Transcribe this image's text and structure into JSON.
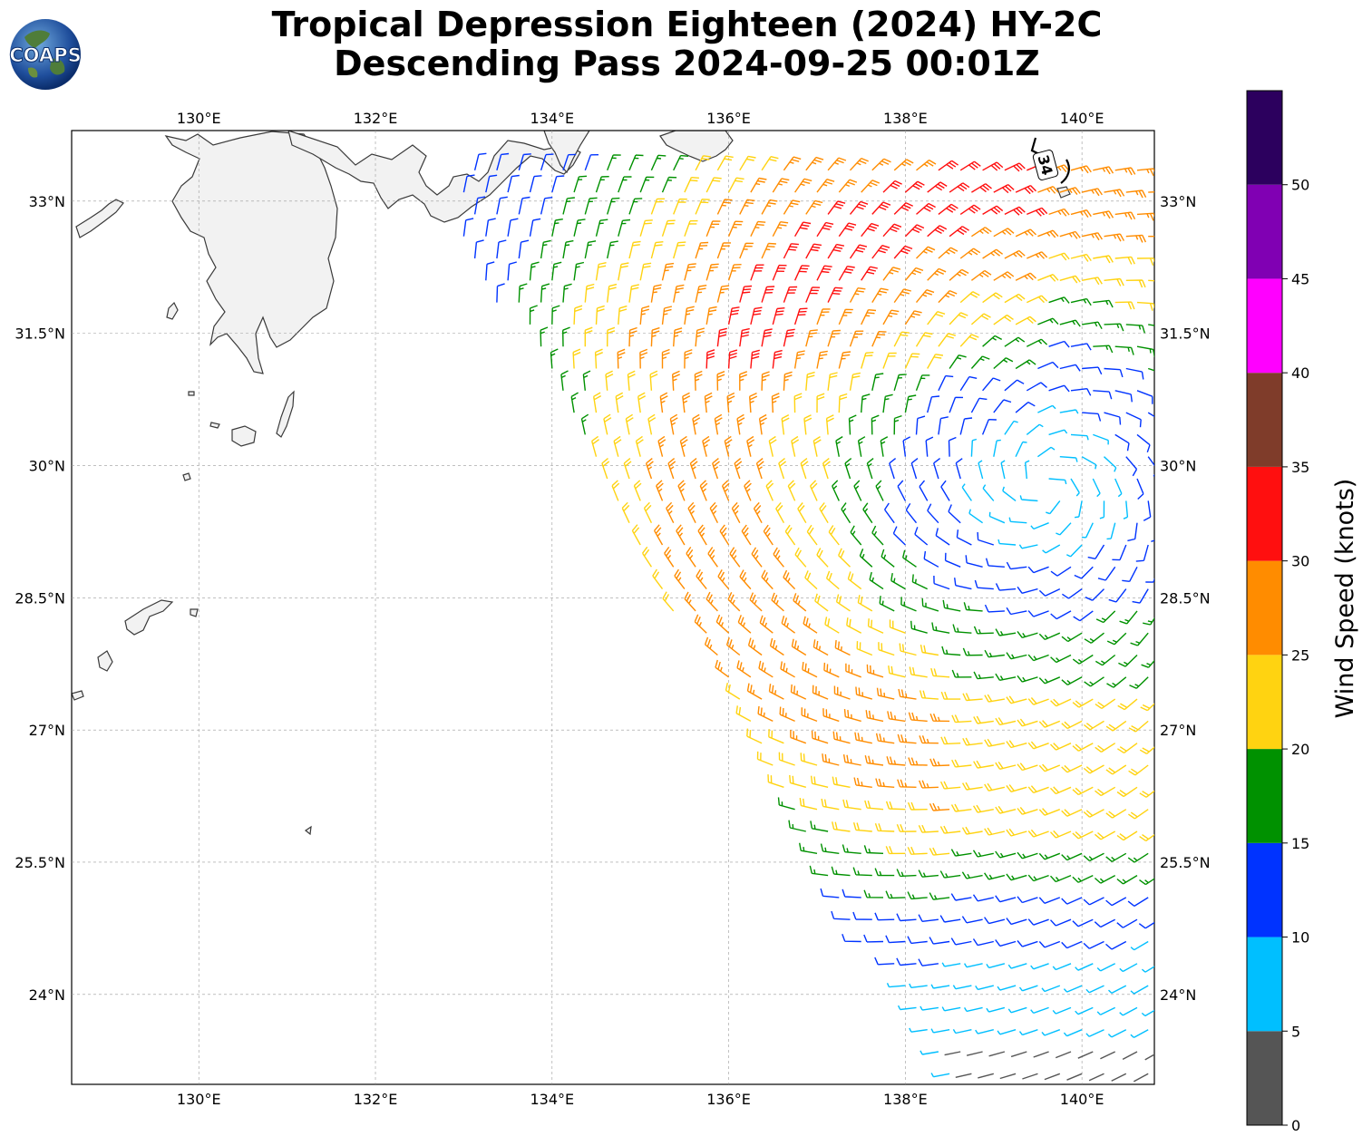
{
  "title": {
    "line1": "Tropical Depression Eighteen (2024) HY-2C",
    "line2": "Descending Pass 2024-09-25 00:01Z"
  },
  "logo": {
    "text": "COAPS"
  },
  "map": {
    "lon_range": [
      128.56,
      140.82
    ],
    "lat_range": [
      22.98,
      33.8
    ],
    "lon_ticks": [
      {
        "value": 130,
        "label": "130°E"
      },
      {
        "value": 132,
        "label": "132°E"
      },
      {
        "value": 134,
        "label": "134°E"
      },
      {
        "value": 136,
        "label": "136°E"
      },
      {
        "value": 138,
        "label": "138°E"
      },
      {
        "value": 140,
        "label": "140°E"
      }
    ],
    "lat_ticks": [
      {
        "value": 33,
        "label": "33°N"
      },
      {
        "value": 31.5,
        "label": "31.5°N"
      },
      {
        "value": 30,
        "label": "30°N"
      },
      {
        "value": 28.5,
        "label": "28.5°N"
      },
      {
        "value": 27,
        "label": "27°N"
      },
      {
        "value": 25.5,
        "label": "25.5°N"
      },
      {
        "value": 24,
        "label": "24°N"
      }
    ],
    "wind_radius_label": "34",
    "grid": true
  },
  "colorbar": {
    "label": "Wind Speed (knots)",
    "ticks": [
      "0",
      "5",
      "10",
      "15",
      "20",
      "25",
      "30",
      "35",
      "40",
      "45",
      "50"
    ],
    "bins": [
      {
        "from": 0,
        "to": 5,
        "color": "#555555"
      },
      {
        "from": 5,
        "to": 10,
        "color": "#00bfff"
      },
      {
        "from": 10,
        "to": 15,
        "color": "#0033ff"
      },
      {
        "from": 15,
        "to": 20,
        "color": "#009100"
      },
      {
        "from": 20,
        "to": 25,
        "color": "#ffd311"
      },
      {
        "from": 25,
        "to": 30,
        "color": "#ff8c00"
      },
      {
        "from": 30,
        "to": 35,
        "color": "#ff0f0f"
      },
      {
        "from": 35,
        "to": 40,
        "color": "#7f3c2a"
      },
      {
        "from": 40,
        "to": 45,
        "color": "#ff00ff"
      },
      {
        "from": 45,
        "to": 50,
        "color": "#8000b3"
      },
      {
        "from": 50,
        "to": 55,
        "color": "#2c005e"
      }
    ]
  }
}
